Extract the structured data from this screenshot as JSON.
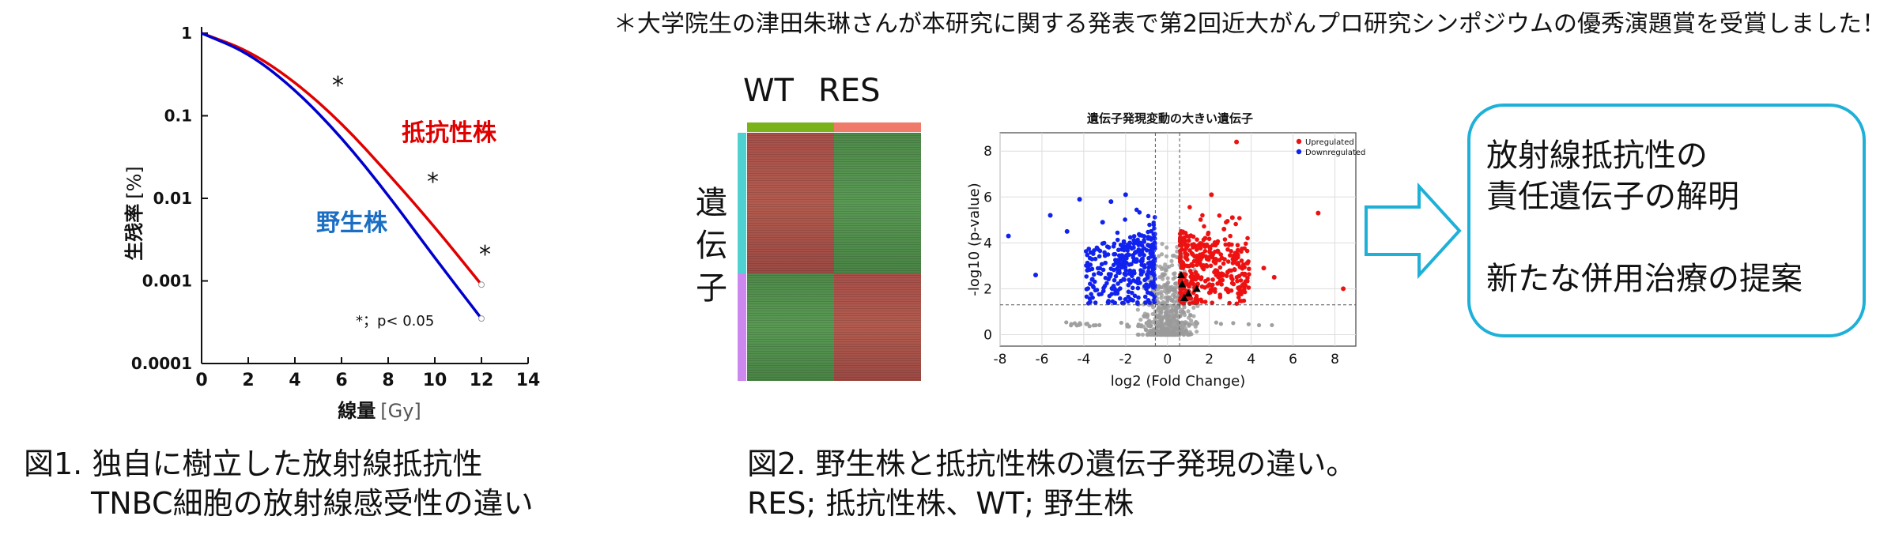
{
  "announcement": "＊大学院生の津田朱琳さんが本研究に関する発表で第2回近大がんプロ研究シンポジウムの優秀演題賞を受賞しました！",
  "figure1": {
    "y_axis_label_main": "生残率",
    "y_axis_label_unit": "[%]",
    "x_axis_label_main": "線量",
    "x_axis_label_unit": "[Gy]",
    "y_ticks": [
      "1",
      "0.1",
      "0.01",
      "0.001",
      "0.0001"
    ],
    "x_ticks": [
      "0",
      "2",
      "4",
      "6",
      "8",
      "10",
      "12",
      "14"
    ],
    "resistant_label": "抵抗性株",
    "wildtype_label": "野生株",
    "significance_marker": "*",
    "significance_note": "*；p< 0.05",
    "resistant_color": "#e00000",
    "wildtype_color": "#0000cc",
    "label_resistant_color": "#e00000",
    "label_wildtype_color": "#1a6fc4",
    "caption_line1": "図1. 独自に樹立した放射線抵抗性",
    "caption_line2": "TNBC細胞の放射線感受性の違い"
  },
  "chart_data": [
    {
      "type": "line",
      "title": "",
      "xlabel": "線量 [Gy]",
      "ylabel": "生残率 [%]",
      "xlim": [
        0,
        14
      ],
      "ylim": [
        0.0001,
        1
      ],
      "y_scale": "log",
      "series": [
        {
          "name": "抵抗性株",
          "x": [
            0,
            2,
            4,
            6,
            8,
            10,
            12
          ],
          "y": [
            1,
            0.62,
            0.26,
            0.082,
            0.02,
            0.0045,
            0.0009
          ]
        },
        {
          "name": "野生株",
          "x": [
            0,
            2,
            4,
            6,
            8,
            10,
            12
          ],
          "y": [
            1,
            0.58,
            0.21,
            0.055,
            0.011,
            0.0019,
            0.00035
          ]
        }
      ]
    },
    {
      "type": "scatter",
      "title": "遺伝子発現変動の大きい遺伝子",
      "xlabel": "log2 (Fold Change)",
      "ylabel": "-log10 (p-value)",
      "xlim": [
        -8,
        9
      ],
      "ylim": [
        -0.5,
        8.8
      ],
      "grid": true,
      "legend": "top-right",
      "x_ticks": [
        -8,
        -6,
        -4,
        -2,
        0,
        2,
        4,
        6,
        8
      ],
      "y_ticks": [
        0,
        2,
        4,
        6,
        8
      ],
      "series": [
        {
          "name": "Upregulated",
          "color": "#ee1111",
          "x": [
            1.2,
            1.8,
            2.3,
            3.1,
            0.9,
            1.5,
            2.7,
            3.5,
            4.6,
            5.1,
            7.2,
            8.4,
            3.3,
            2.1,
            0.8
          ],
          "y": [
            3.5,
            4.2,
            2.8,
            5.1,
            2.2,
            3.9,
            4.6,
            1.9,
            2.9,
            2.5,
            5.3,
            2.0,
            8.4,
            6.1,
            1.8
          ]
        },
        {
          "name": "Downregulated",
          "color": "#1122ee",
          "x": [
            -1.2,
            -1.8,
            -2.3,
            -3.1,
            -0.9,
            -1.5,
            -2.7,
            -3.6,
            -4.8,
            -5.6,
            -7.6,
            -6.3,
            -4.2,
            -2.0,
            -0.8
          ],
          "y": [
            3.3,
            4.0,
            2.7,
            4.9,
            2.1,
            3.6,
            5.8,
            2.4,
            4.5,
            5.2,
            4.3,
            2.6,
            5.9,
            6.1,
            1.8
          ]
        }
      ],
      "thresholds": {
        "x": [
          -0.58,
          0.58
        ],
        "y": 1.3
      }
    }
  ],
  "figure2": {
    "heatmap_header_wt": "WT",
    "heatmap_header_res": "RES",
    "heatmap_side_label": [
      "遺",
      "伝",
      "子"
    ],
    "wt_bar_color": "#7ab317",
    "res_bar_color": "#f07a6a",
    "group_a_color": "#4fd1d1",
    "group_b_color": "#cc88ee",
    "legend_up": "Upregulated",
    "legend_down": "Downregulated",
    "caption_line1": "図2. 野生株と抵抗性株の遺伝子発現の違い。",
    "caption_line2": "RES; 抵抗性株、WT; 野生株"
  },
  "result_box": {
    "line1": "放射線抵抗性の",
    "line2": "責任遺伝子の解明",
    "line3": "新たな併用治療の提案",
    "border_color": "#1fb0d8"
  }
}
